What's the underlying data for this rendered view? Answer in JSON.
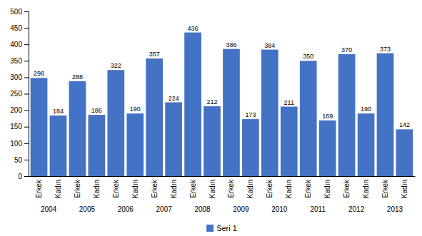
{
  "chart_data": {
    "type": "bar",
    "categories": [
      "Erkek",
      "Kadın",
      "Erkek",
      "Kadın",
      "Erkek",
      "Kadın",
      "Erkek",
      "Kadın",
      "Erkek",
      "Kadın",
      "Erkek",
      "Kadın",
      "Erkek",
      "Kadın",
      "Erkek",
      "Kadın",
      "Erkek",
      "Kadın",
      "Erkek",
      "Kadın"
    ],
    "annotations": [
      "2004",
      "2005",
      "2006",
      "2007",
      "2008",
      "2009",
      "2010",
      "2011",
      "2012",
      "2013"
    ],
    "series": [
      {
        "name": "Seri 1",
        "color": "#4472C4",
        "values": [
          298,
          184,
          288,
          186,
          322,
          190,
          357,
          224,
          436,
          212,
          386,
          173,
          384,
          211,
          350,
          169,
          370,
          190,
          373,
          142
        ]
      }
    ],
    "ylim": [
      0,
      500
    ],
    "yticks": [
      0,
      50,
      100,
      150,
      200,
      250,
      300,
      350,
      400,
      450,
      500
    ],
    "grid": false,
    "legend": "bottom",
    "data_labels": true
  }
}
